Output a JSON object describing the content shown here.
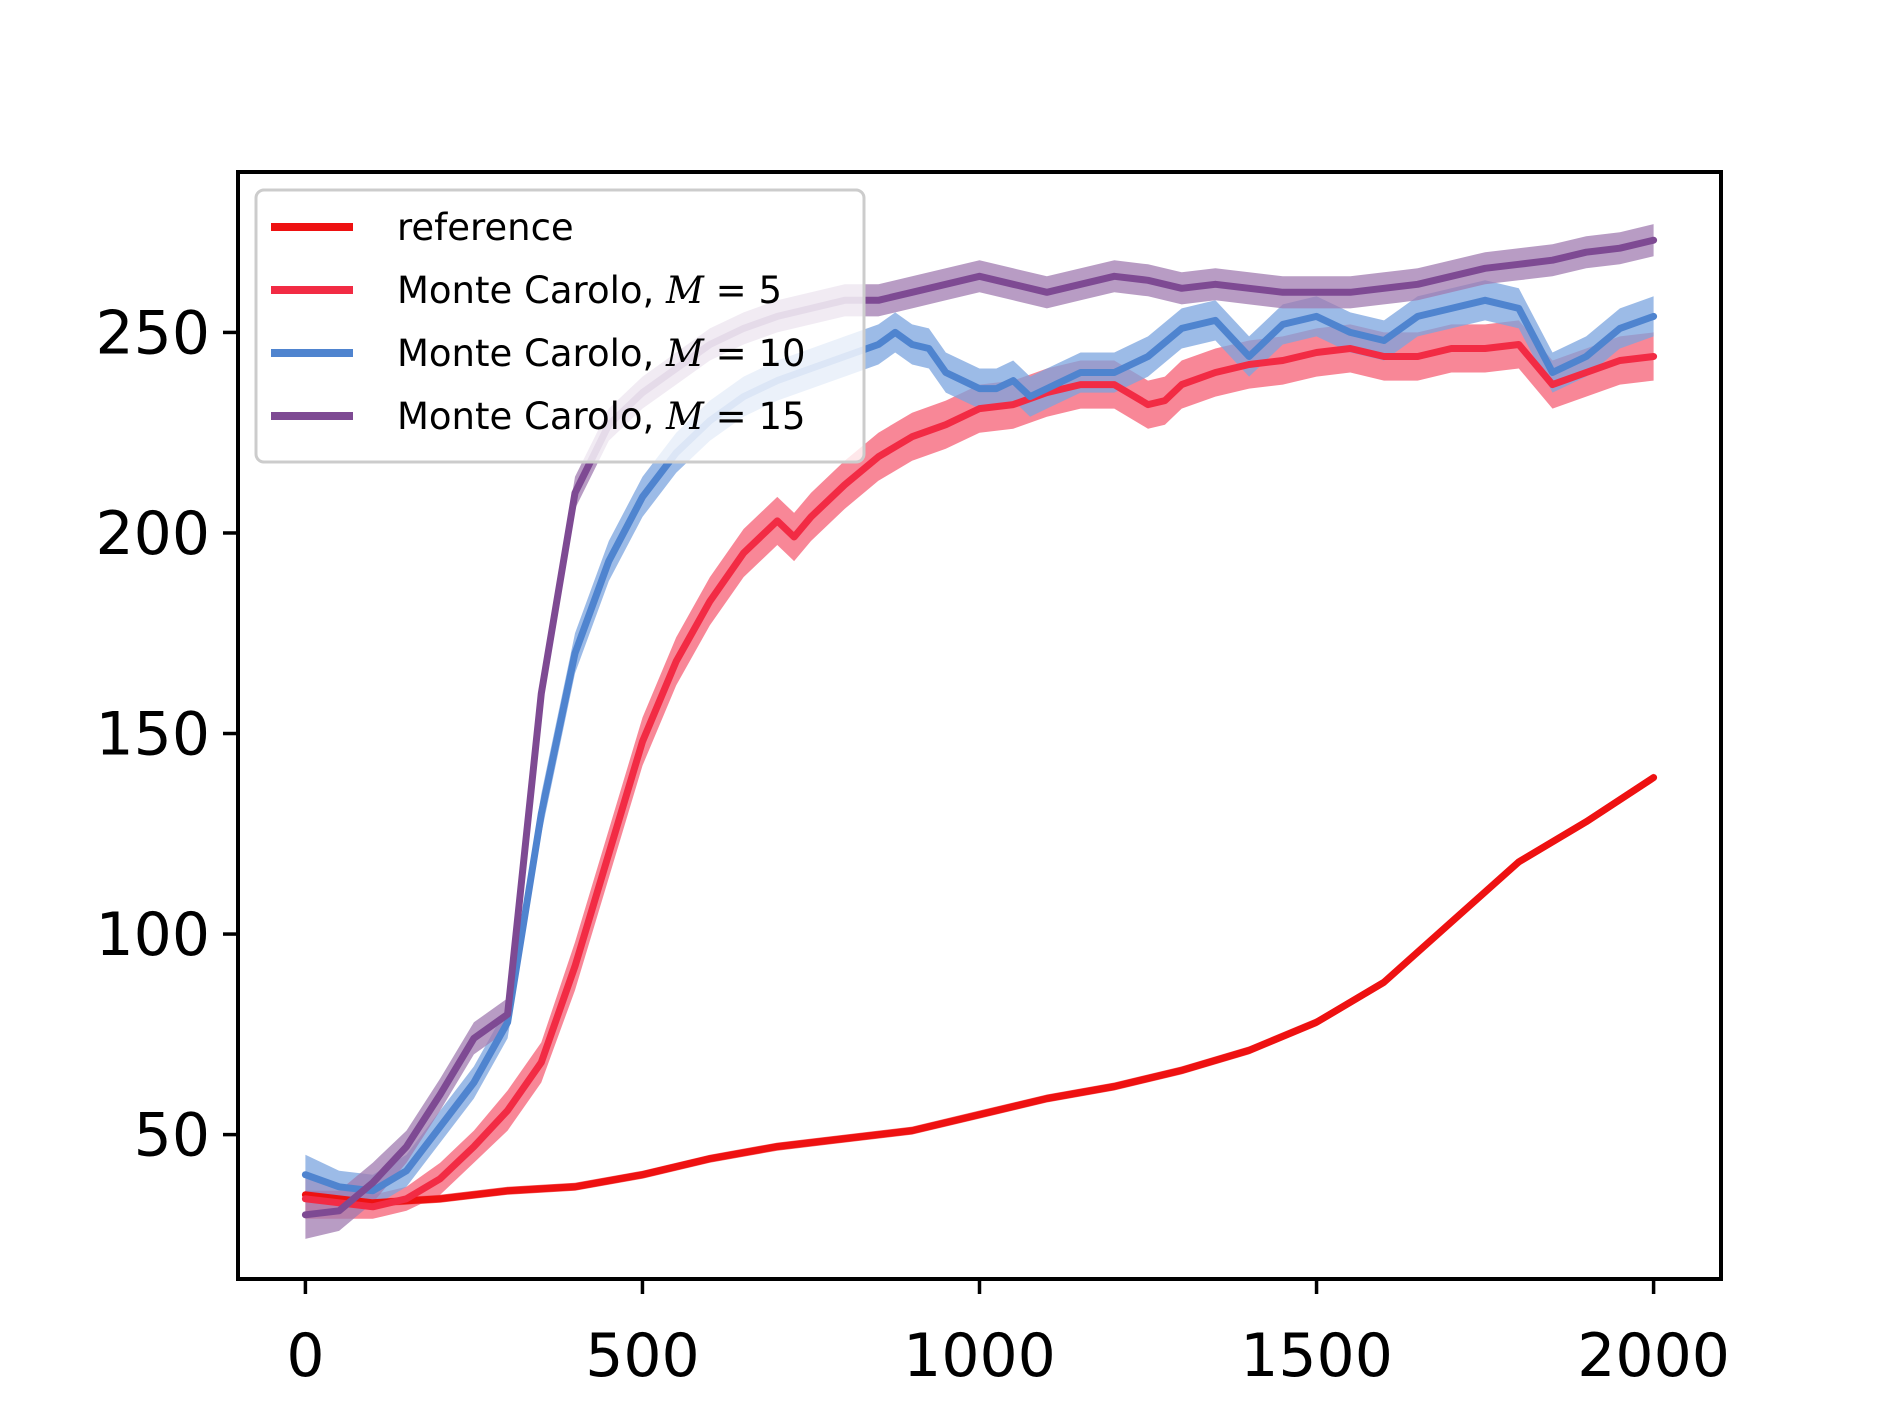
{
  "chart_data": {
    "type": "line",
    "title": "",
    "xlabel": "",
    "ylabel": "",
    "xlim": [
      -100,
      2100
    ],
    "ylim": [
      14,
      290
    ],
    "xticks": [
      0,
      500,
      1000,
      1500,
      2000
    ],
    "yticks": [
      50,
      100,
      150,
      200,
      250
    ],
    "xtick_labels": [
      "0",
      "500",
      "1000",
      "1500",
      "2000"
    ],
    "ytick_labels": [
      "50",
      "100",
      "150",
      "200",
      "250"
    ],
    "grid": false,
    "legend": {
      "location": "upper-left"
    },
    "series": [
      {
        "name": "reference",
        "color": "#ee1111",
        "band_color": "#f03030",
        "x": [
          0,
          100,
          200,
          300,
          400,
          500,
          600,
          700,
          800,
          900,
          1000,
          1100,
          1200,
          1300,
          1400,
          1500,
          1600,
          1700,
          1800,
          1900,
          2000
        ],
        "values": [
          35,
          33,
          34,
          36,
          37,
          40,
          44,
          47,
          49,
          51,
          55,
          59,
          62,
          66,
          71,
          78,
          88,
          103,
          118,
          128,
          139
        ],
        "band": [
          1,
          1,
          1,
          1,
          1,
          1,
          1,
          1,
          1,
          1,
          1,
          1,
          1,
          1,
          1,
          1,
          1,
          1,
          1,
          1,
          1
        ]
      },
      {
        "name": "Monte Carolo, M = 5",
        "label_text": "Monte Carolo, ",
        "label_math": "M",
        "label_eq": " = 5",
        "color": "#f22b44",
        "band_color": "#f55f74",
        "x": [
          0,
          50,
          100,
          150,
          200,
          250,
          300,
          350,
          400,
          450,
          500,
          550,
          600,
          650,
          700,
          725,
          750,
          800,
          850,
          900,
          950,
          1000,
          1050,
          1100,
          1150,
          1200,
          1250,
          1275,
          1300,
          1350,
          1400,
          1450,
          1500,
          1550,
          1600,
          1650,
          1700,
          1750,
          1800,
          1850,
          1900,
          1950,
          2000
        ],
        "values": [
          34,
          33,
          32,
          34,
          39,
          47,
          56,
          68,
          92,
          120,
          148,
          168,
          183,
          195,
          203,
          199,
          204,
          212,
          219,
          224,
          227,
          231,
          232,
          235,
          237,
          237,
          232,
          233,
          237,
          240,
          242,
          243,
          245,
          246,
          244,
          244,
          246,
          246,
          247,
          237,
          240,
          243,
          244
        ],
        "band": [
          5,
          4,
          3,
          3,
          4,
          4,
          5,
          5,
          6,
          6,
          6,
          6,
          6,
          6,
          6,
          6,
          6,
          6,
          6,
          6,
          6,
          6,
          6,
          6,
          6,
          6,
          6,
          6,
          6,
          6,
          6,
          6,
          6,
          6,
          6,
          6,
          6,
          6,
          6,
          6,
          6,
          6,
          6
        ]
      },
      {
        "name": "Monte Carolo, M = 10",
        "label_text": "Monte Carolo, ",
        "label_math": "M",
        "label_eq": " = 10",
        "color": "#4f84cf",
        "band_color": "#7ba4df",
        "x": [
          0,
          50,
          100,
          150,
          200,
          250,
          300,
          350,
          400,
          450,
          500,
          550,
          600,
          650,
          700,
          750,
          800,
          850,
          875,
          900,
          925,
          950,
          1000,
          1025,
          1050,
          1075,
          1100,
          1150,
          1200,
          1250,
          1300,
          1350,
          1400,
          1450,
          1500,
          1550,
          1600,
          1650,
          1700,
          1750,
          1800,
          1850,
          1900,
          1950,
          2000
        ],
        "values": [
          40,
          37,
          36,
          41,
          52,
          63,
          78,
          130,
          170,
          193,
          209,
          220,
          228,
          234,
          238,
          241,
          244,
          247,
          250,
          247,
          246,
          240,
          236,
          236,
          238,
          234,
          236,
          240,
          240,
          244,
          251,
          253,
          244,
          252,
          254,
          250,
          248,
          254,
          256,
          258,
          256,
          240,
          244,
          251,
          254
        ],
        "band": [
          5,
          4,
          4,
          4,
          4,
          4,
          4,
          5,
          5,
          5,
          5,
          5,
          5,
          5,
          5,
          5,
          5,
          5,
          5,
          5,
          5,
          5,
          5,
          5,
          5,
          5,
          5,
          5,
          5,
          5,
          5,
          5,
          5,
          5,
          5,
          5,
          5,
          5,
          5,
          5,
          5,
          5,
          5,
          5,
          5
        ]
      },
      {
        "name": "Monte Carolo, M = 15",
        "label_text": "Monte Carolo, ",
        "label_math": "M",
        "label_eq": " = 15",
        "color": "#7e4a93",
        "band_color": "#a07bb0",
        "x": [
          0,
          50,
          100,
          150,
          200,
          250,
          300,
          350,
          400,
          450,
          500,
          550,
          600,
          650,
          700,
          750,
          800,
          850,
          900,
          950,
          1000,
          1050,
          1100,
          1150,
          1200,
          1250,
          1300,
          1350,
          1400,
          1450,
          1500,
          1550,
          1600,
          1650,
          1700,
          1750,
          1800,
          1850,
          1900,
          1950,
          2000
        ],
        "values": [
          30,
          31,
          38,
          47,
          60,
          74,
          80,
          160,
          210,
          227,
          235,
          241,
          247,
          251,
          254,
          256,
          258,
          258,
          260,
          262,
          264,
          262,
          260,
          262,
          264,
          263,
          261,
          262,
          261,
          260,
          260,
          260,
          261,
          262,
          264,
          266,
          267,
          268,
          270,
          271,
          273
        ],
        "band": [
          6,
          5,
          5,
          4,
          4,
          4,
          4,
          4,
          4,
          4,
          4,
          4,
          4,
          4,
          4,
          4,
          4,
          4,
          4,
          4,
          4,
          4,
          4,
          4,
          4,
          4,
          4,
          4,
          4,
          4,
          4,
          4,
          4,
          4,
          4,
          4,
          4,
          4,
          4,
          4,
          4
        ]
      }
    ]
  }
}
